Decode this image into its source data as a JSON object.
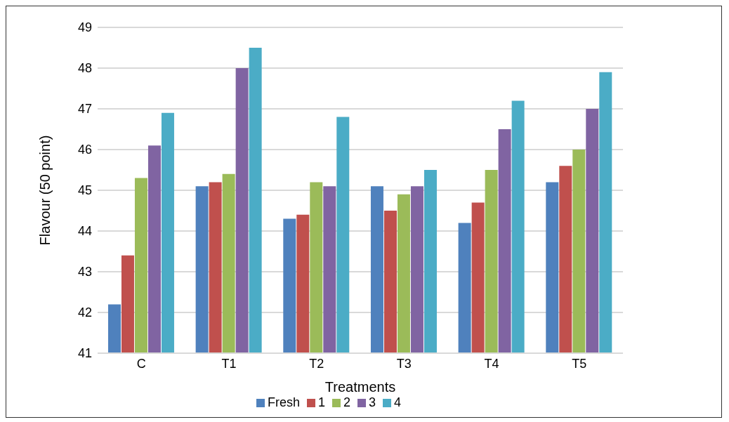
{
  "chart_data": {
    "type": "bar",
    "xlabel": "Treatments",
    "ylabel": "Flavour (50 point)",
    "categories": [
      "C",
      "T1",
      "T2",
      "T3",
      "T4",
      "T5"
    ],
    "series": [
      {
        "name": "Fresh",
        "color": "#4f81bd",
        "values": [
          42.2,
          45.1,
          44.3,
          45.1,
          44.2,
          45.2
        ]
      },
      {
        "name": "1",
        "color": "#c0504d",
        "values": [
          43.4,
          45.2,
          44.4,
          44.5,
          44.7,
          45.6
        ]
      },
      {
        "name": "2",
        "color": "#9bbb59",
        "values": [
          45.3,
          45.4,
          45.2,
          44.9,
          45.5,
          46.0
        ]
      },
      {
        "name": "3",
        "color": "#8064a2",
        "values": [
          46.1,
          48.0,
          45.1,
          45.1,
          46.5,
          47.0
        ]
      },
      {
        "name": "4",
        "color": "#4bacc6",
        "values": [
          46.9,
          48.5,
          46.8,
          45.5,
          47.2,
          47.9
        ]
      }
    ],
    "ylim": [
      41,
      49
    ],
    "yticks": [
      41,
      42,
      43,
      44,
      45,
      46,
      47,
      48,
      49
    ],
    "grid": "y",
    "legend": "bottom"
  }
}
